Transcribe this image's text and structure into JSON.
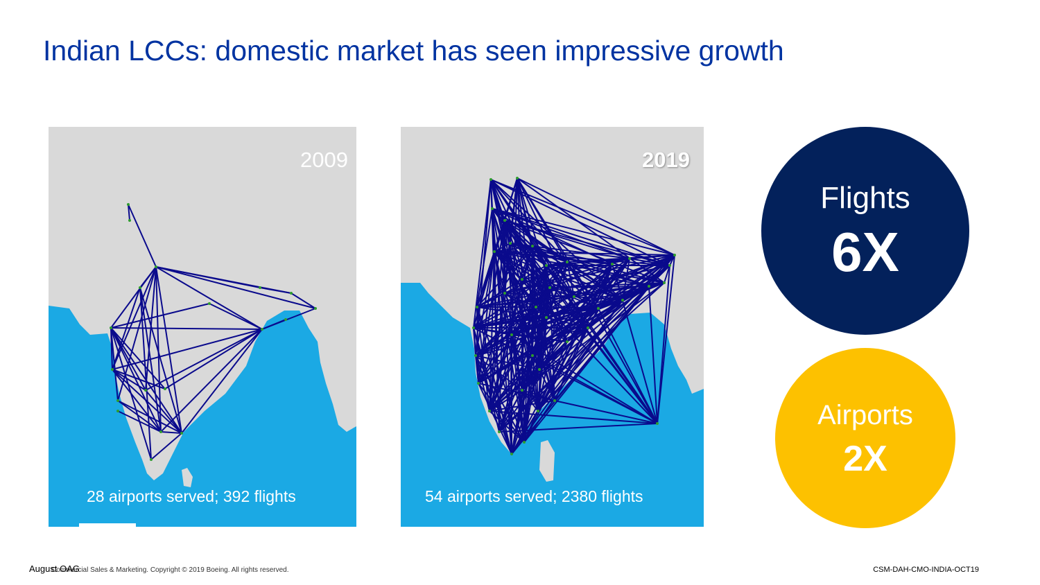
{
  "slide": {
    "title": "Indian LCCs: domestic market has seen impressive growth"
  },
  "maps": [
    {
      "year": "2009",
      "caption": "28 airports served;   392 flights"
    },
    {
      "year": "2019",
      "caption": "54 airports served;   2380 flights"
    }
  ],
  "stats": {
    "flights": {
      "label": "Flights",
      "multiplier": "6X",
      "color": "#03215b"
    },
    "airports": {
      "label": "Airports",
      "multiplier": "2X",
      "color": "#fdc100"
    }
  },
  "footer": {
    "source": "August OAG",
    "copyright": "Commercial Sales & Marketing. Copyright © 2019 Boeing. All rights reserved.",
    "code": "CSM-DAH-CMO-INDIA-OCT19"
  },
  "colors": {
    "title": "#0033a1",
    "land": "#d9d9d9",
    "sea": "#1ba9e4",
    "route": "#0a0a8c",
    "airport_marker": "#2e9c2e"
  }
}
